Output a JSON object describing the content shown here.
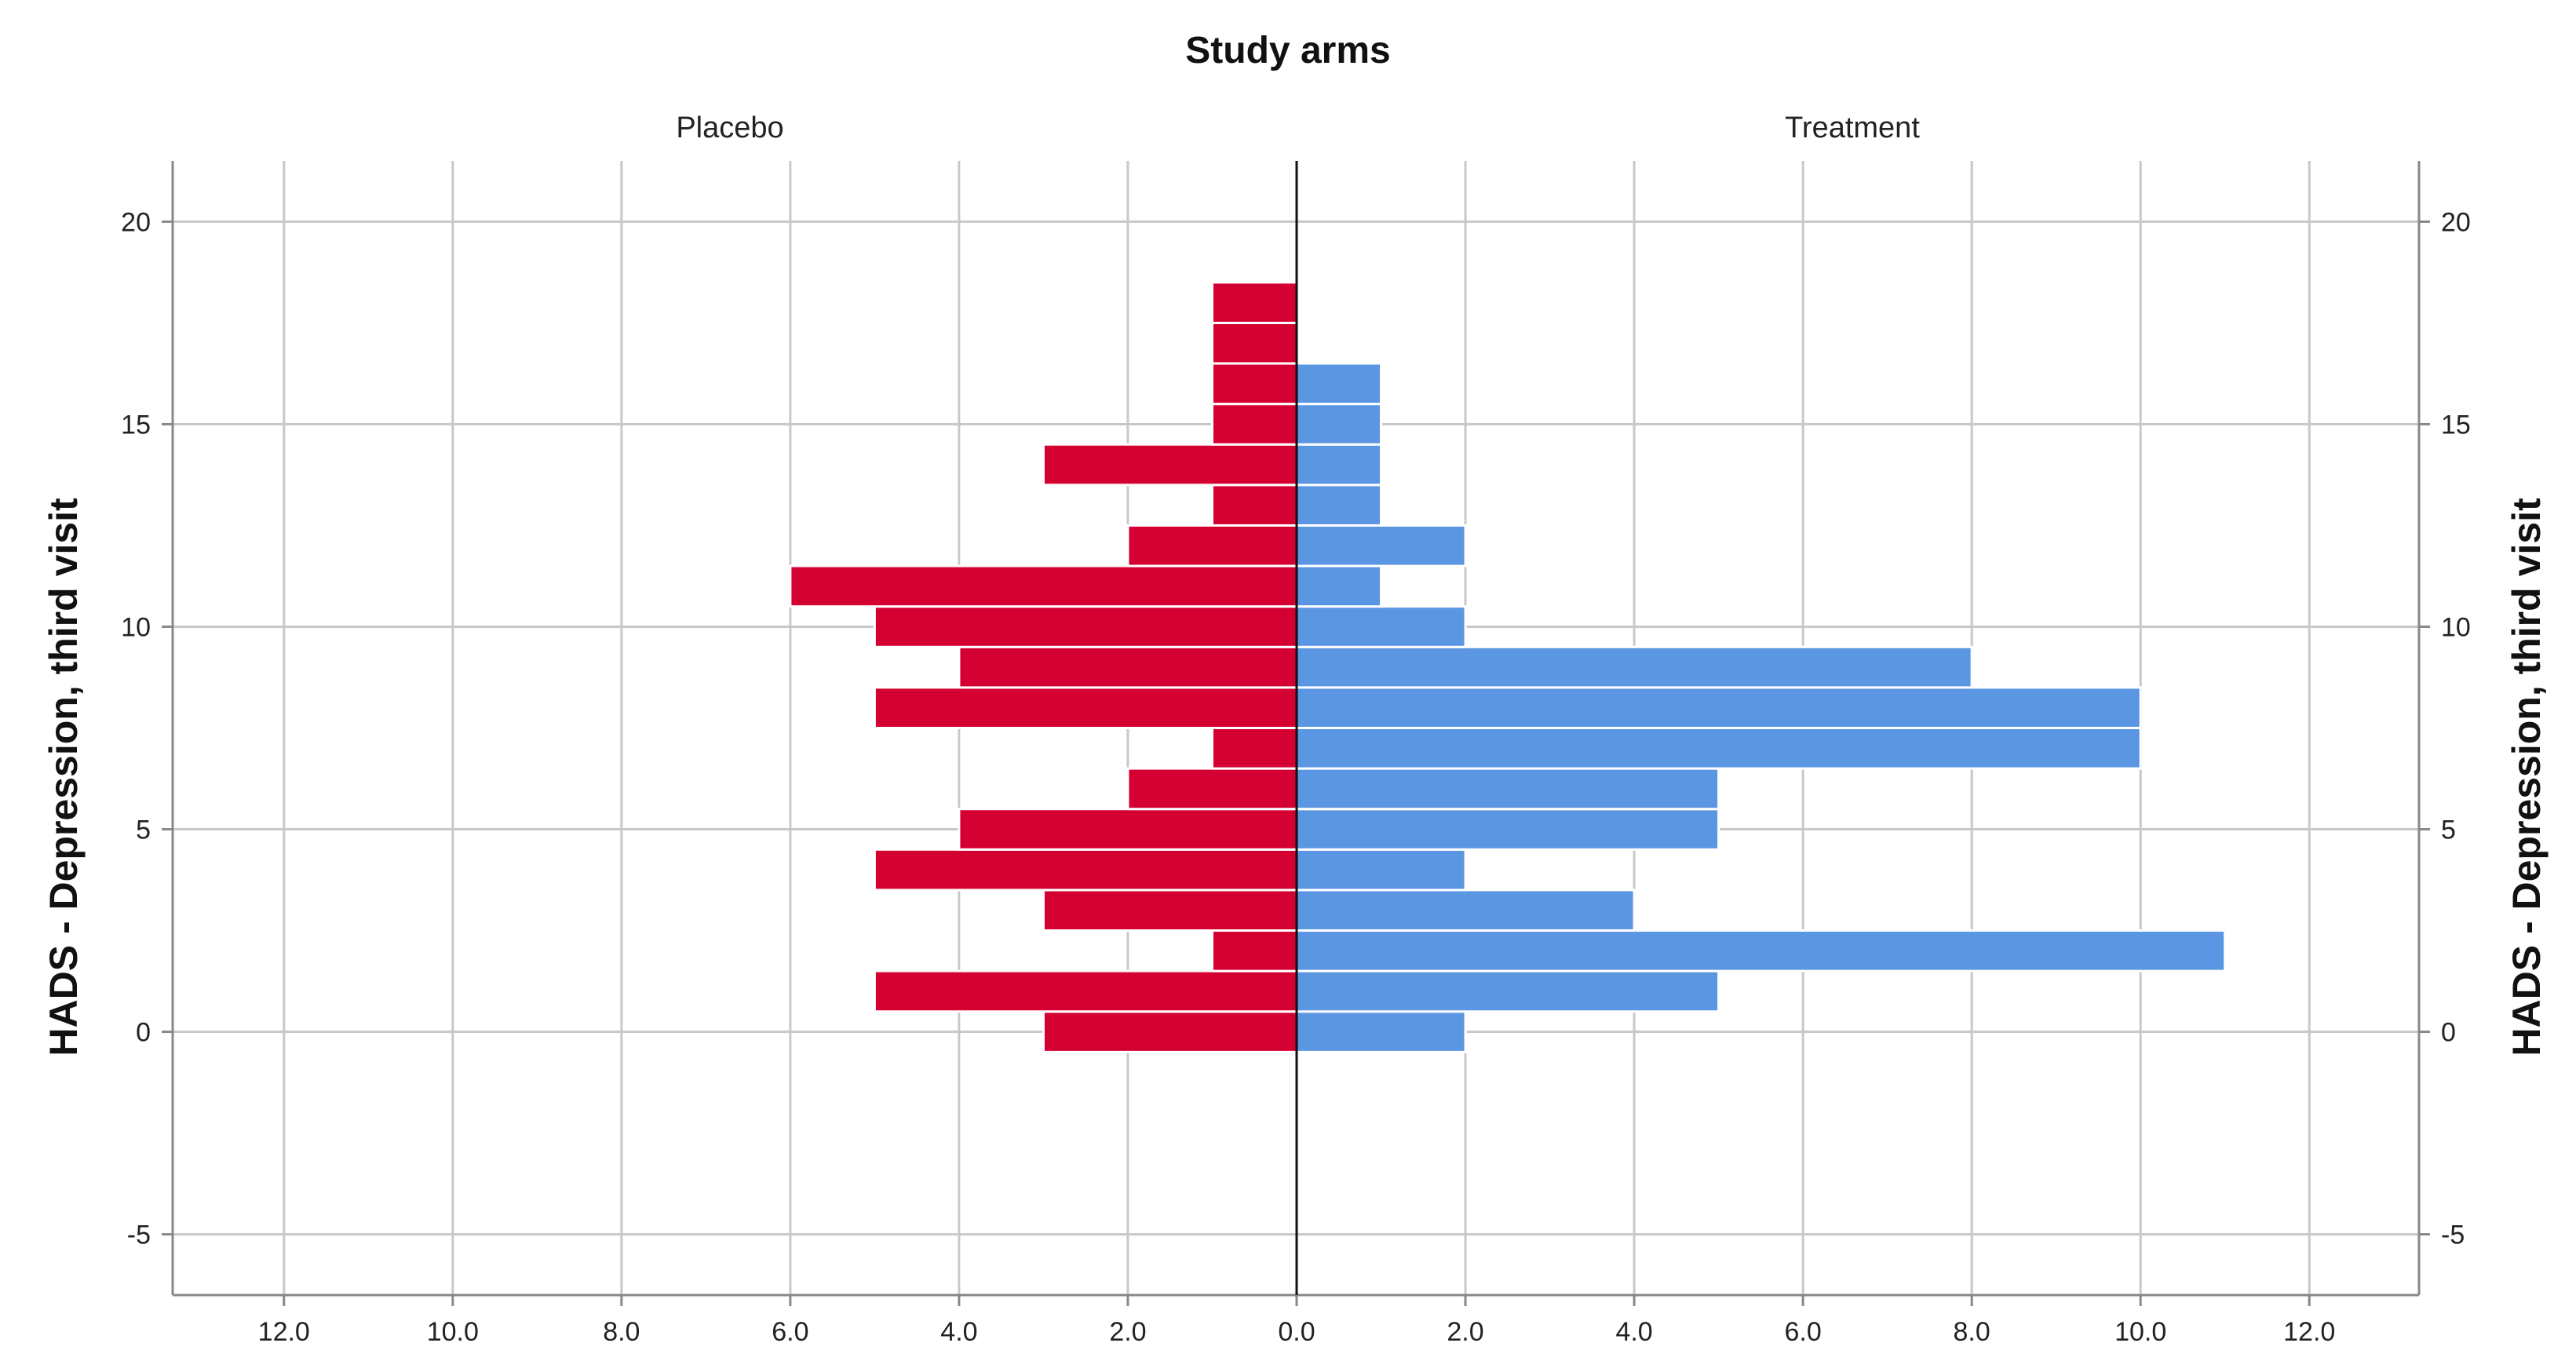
{
  "chart_data": {
    "type": "bar",
    "subtype": "population-pyramid histogram",
    "title": "Study arms",
    "ylabel_left": "HADS - Depression, third visit",
    "ylabel_right": "HADS - Depression, third visit",
    "ylim": [
      -6.5,
      21.5
    ],
    "yticks": [
      -5,
      0,
      5,
      10,
      15,
      20
    ],
    "ytick_labels": [
      "-5",
      "0",
      "5",
      "10",
      "15",
      "20"
    ],
    "xlim": [
      -13.3,
      13.3
    ],
    "xticks": [
      -12,
      -10,
      -8,
      -6,
      -4,
      -2,
      0,
      2,
      4,
      6,
      8,
      10,
      12
    ],
    "xtick_labels": [
      "12.0",
      "10.0",
      "8.0",
      "6.0",
      "4.0",
      "2.0",
      "0.0",
      "2.0",
      "4.0",
      "6.0",
      "8.0",
      "10.0",
      "12.0"
    ],
    "bin_width": 1,
    "grid": true,
    "series": [
      {
        "name": "Placebo",
        "side": "left",
        "color": "#d40032",
        "bins": [
          0,
          1,
          2,
          3,
          4,
          5,
          6,
          7,
          8,
          9,
          10,
          11,
          12,
          13,
          14,
          15,
          16,
          17,
          18
        ],
        "values": [
          3,
          5,
          1,
          3,
          5,
          4,
          2,
          1,
          5,
          4,
          5,
          6,
          2,
          1,
          3,
          1,
          1,
          1,
          1
        ]
      },
      {
        "name": "Treatment",
        "side": "right",
        "color": "#5b96e3",
        "bins": [
          0,
          1,
          2,
          3,
          4,
          5,
          6,
          7,
          8,
          9,
          10,
          11,
          12,
          13,
          14,
          15,
          16
        ],
        "values": [
          2,
          5,
          11,
          4,
          2,
          5,
          5,
          10,
          10,
          8,
          2,
          1,
          2,
          1,
          1,
          1,
          1
        ]
      }
    ]
  }
}
